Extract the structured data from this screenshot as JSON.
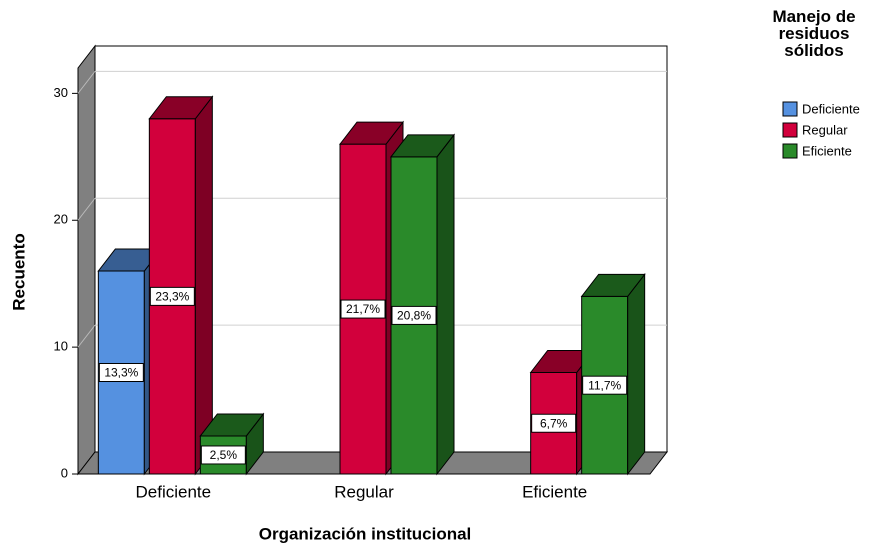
{
  "chart_data": {
    "type": "bar3d",
    "x_label": "Organización institucional",
    "y_label": "Recuento",
    "legend_title": "Manejo de residuos sólidos",
    "categories": [
      "Deficiente",
      "Regular",
      "Eficiente"
    ],
    "series": [
      {
        "name": "Deficiente",
        "color": "#5591e0",
        "values": [
          16,
          null,
          null
        ],
        "data_labels": [
          "13,3%",
          null,
          null
        ]
      },
      {
        "name": "Regular",
        "color": "#d2003c",
        "values": [
          28,
          26,
          8
        ],
        "data_labels": [
          "23,3%",
          "21,7%",
          "6,7%"
        ]
      },
      {
        "name": "Eficiente",
        "color": "#2a8a2a",
        "values": [
          3,
          25,
          14
        ],
        "data_labels": [
          "2,5%",
          "20,8%",
          "11,7%"
        ]
      }
    ],
    "ylim": [
      0,
      32
    ],
    "yticks": [
      0,
      10,
      20,
      30
    ],
    "grid": true,
    "legend": "right"
  }
}
